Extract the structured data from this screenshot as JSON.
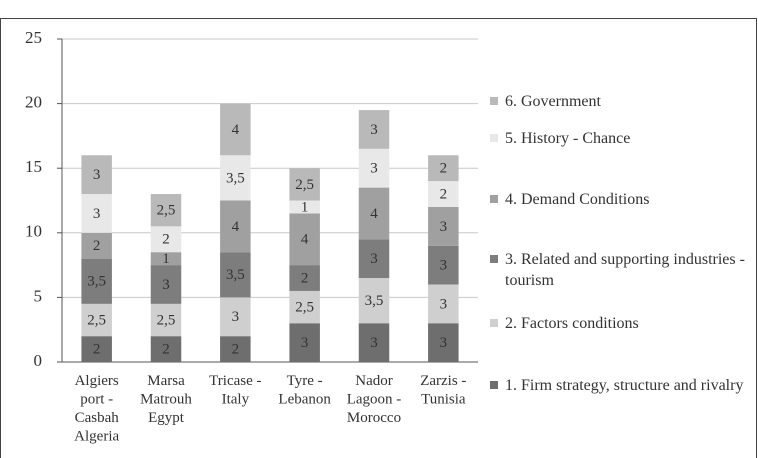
{
  "chart_data": {
    "type": "bar",
    "categories": [
      [
        "Algiers",
        "port -",
        "Casbah",
        "Algeria"
      ],
      [
        "Marsa",
        "Matrouh",
        "Egypt"
      ],
      [
        "Tricase -",
        "Italy"
      ],
      [
        "Tyre -",
        "Lebanon"
      ],
      [
        "Nador",
        "Lagoon -",
        "Morocco"
      ],
      [
        "Zarzis -",
        "Tunisia"
      ]
    ],
    "series": [
      {
        "name": "1. Firm strategy, structure and rivalry",
        "color": "#6e6e6e",
        "values": [
          2,
          2,
          2,
          3,
          3,
          3
        ]
      },
      {
        "name": "2. Factors conditions",
        "color": "#cfcfcf",
        "values": [
          2.5,
          2.5,
          3,
          2.5,
          3.5,
          3
        ],
        "value_labels": [
          "2,5",
          "2,5",
          "3",
          "2,5",
          "3,5",
          "3"
        ]
      },
      {
        "name": "3. Related and supporting industries - tourism",
        "color": "#7d7d7d",
        "values": [
          3.5,
          3,
          3.5,
          2,
          3,
          3
        ],
        "value_labels": [
          "3,5",
          "3",
          "3,5",
          "2",
          "3",
          "3"
        ]
      },
      {
        "name": "4. Demand Conditions",
        "color": "#a0a0a0",
        "values": [
          2,
          1,
          4,
          4,
          4,
          3
        ]
      },
      {
        "name": "5. History - Chance",
        "color": "#e8e8e8",
        "values": [
          3,
          2,
          3.5,
          1,
          3,
          2
        ],
        "value_labels": [
          "3",
          "2",
          "3,5",
          "1",
          "3",
          "2"
        ]
      },
      {
        "name": "6. Government",
        "color": "#b9b9b9",
        "values": [
          3,
          2.5,
          4,
          2.5,
          3,
          2
        ],
        "value_labels": [
          "3",
          "2,5",
          "4",
          "2,5",
          "3",
          "2"
        ]
      }
    ],
    "stacked": true,
    "ylim": [
      0,
      25
    ],
    "yticks": [
      0,
      5,
      10,
      15,
      20,
      25
    ],
    "grid": true,
    "legend": "right"
  }
}
